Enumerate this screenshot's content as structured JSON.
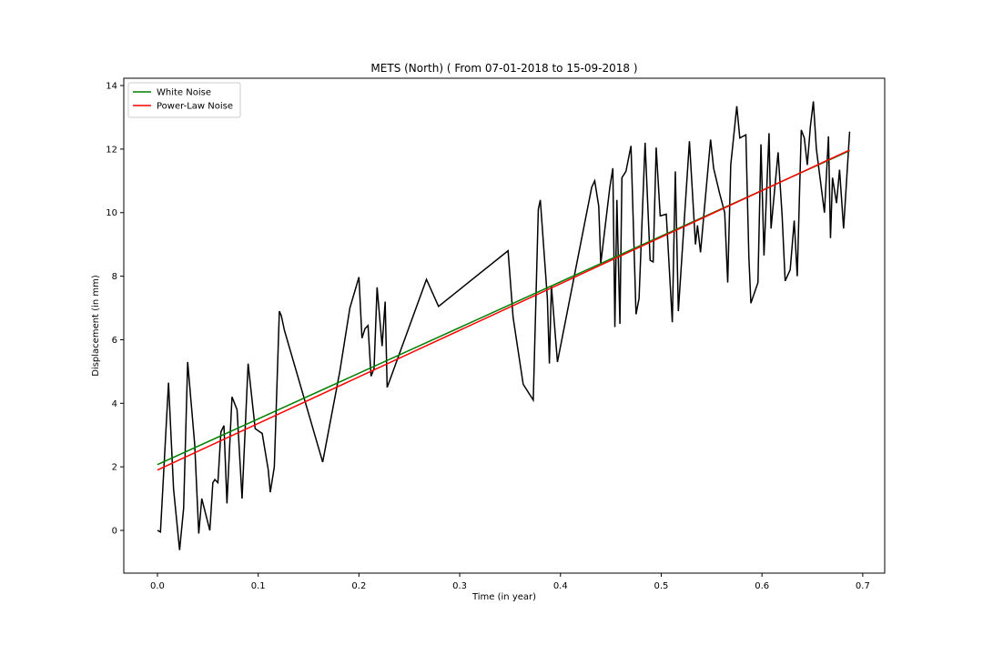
{
  "chart_data": {
    "type": "line",
    "title": "METS (North) ( From 07-01-2018 to 15-09-2018 )",
    "x_label": "Time (in year)",
    "y_label": "Displacement (in mm)",
    "xlim": [
      -0.0334,
      0.7218
    ],
    "ylim": [
      -1.345,
      14.23
    ],
    "xticks": [
      {
        "value": 0,
        "label": "0.0"
      },
      0.1,
      0.2,
      0.3,
      0.4,
      0.5,
      0.6,
      0.7
    ],
    "yticks": [
      0,
      2,
      4,
      6,
      8,
      10,
      12,
      14
    ],
    "legend": "upper left",
    "series": [
      {
        "color": "#000000",
        "x": [
          0,
          0.003,
          0.011,
          0.016,
          0.022,
          0.026,
          0.03,
          0.037,
          0.041,
          0.044,
          0.052,
          0.055,
          0.057,
          0.06,
          0.063,
          0.066,
          0.069,
          0.074,
          0.079,
          0.084,
          0.09,
          0.097,
          0.104,
          0.11,
          0.112,
          0.116,
          0.121,
          0.123,
          0.126,
          0.164,
          0.181,
          0.191,
          0.2,
          0.203,
          0.206,
          0.209,
          0.212,
          0.215,
          0.218,
          0.223,
          0.226,
          0.228,
          0.267,
          0.279,
          0.348,
          0.353,
          0.363,
          0.373,
          0.378,
          0.38,
          0.387,
          0.389,
          0.391,
          0.397,
          0.431,
          0.434,
          0.438,
          0.44,
          0.449,
          0.452,
          0.454,
          0.456,
          0.459,
          0.461,
          0.465,
          0.47,
          0.475,
          0.478,
          0.484,
          0.489,
          0.492,
          0.495,
          0.499,
          0.505,
          0.511,
          0.514,
          0.517,
          0.528,
          0.534,
          0.536,
          0.539,
          0.549,
          0.552,
          0.558,
          0.563,
          0.566,
          0.569,
          0.575,
          0.578,
          0.584,
          0.587,
          0.589,
          0.596,
          0.599,
          0.602,
          0.607,
          0.609,
          0.616,
          0.62,
          0.623,
          0.628,
          0.632,
          0.635,
          0.639,
          0.642,
          0.645,
          0.648,
          0.651,
          0.654,
          0.662,
          0.666,
          0.668,
          0.67,
          0.674,
          0.677,
          0.681,
          0.687
        ],
        "values": [
          0.0,
          -0.05,
          4.65,
          1.3,
          -0.62,
          0.7,
          5.3,
          2.7,
          -0.1,
          1.0,
          0.0,
          1.5,
          1.6,
          1.5,
          3.1,
          3.3,
          0.85,
          4.2,
          3.8,
          1.0,
          5.25,
          3.2,
          3.05,
          1.9,
          1.2,
          2.0,
          6.9,
          6.75,
          6.3,
          2.15,
          5.0,
          7.0,
          7.97,
          6.05,
          6.35,
          6.45,
          4.85,
          5.1,
          7.65,
          5.8,
          7.2,
          4.5,
          7.9,
          7.05,
          8.8,
          6.7,
          4.6,
          4.1,
          10.1,
          10.4,
          7.3,
          5.25,
          7.7,
          5.3,
          10.8,
          11.0,
          10.2,
          8.4,
          10.8,
          11.4,
          6.4,
          10.4,
          6.5,
          11.1,
          11.3,
          12.1,
          6.8,
          7.3,
          12.2,
          8.5,
          8.45,
          12.05,
          9.9,
          9.95,
          6.55,
          11.3,
          6.9,
          12.25,
          9.0,
          9.6,
          8.75,
          12.3,
          11.4,
          10.6,
          10.0,
          7.8,
          11.5,
          13.35,
          12.35,
          12.45,
          8.6,
          7.15,
          7.8,
          12.15,
          8.65,
          12.5,
          9.5,
          11.9,
          9.9,
          7.85,
          8.2,
          9.75,
          8.0,
          12.6,
          12.35,
          11.5,
          12.7,
          13.5,
          12.0,
          10.0,
          12.4,
          9.2,
          11.1,
          10.3,
          11.35,
          9.5,
          12.55
        ]
      },
      {
        "name": "White Noise",
        "color": "#008000",
        "x": [
          0,
          0.687
        ],
        "values": [
          2.07,
          11.95
        ]
      },
      {
        "name": "Power-Law Noise",
        "color": "#ff0000",
        "x": [
          0,
          0.687
        ],
        "values": [
          1.9,
          11.97
        ]
      }
    ]
  }
}
